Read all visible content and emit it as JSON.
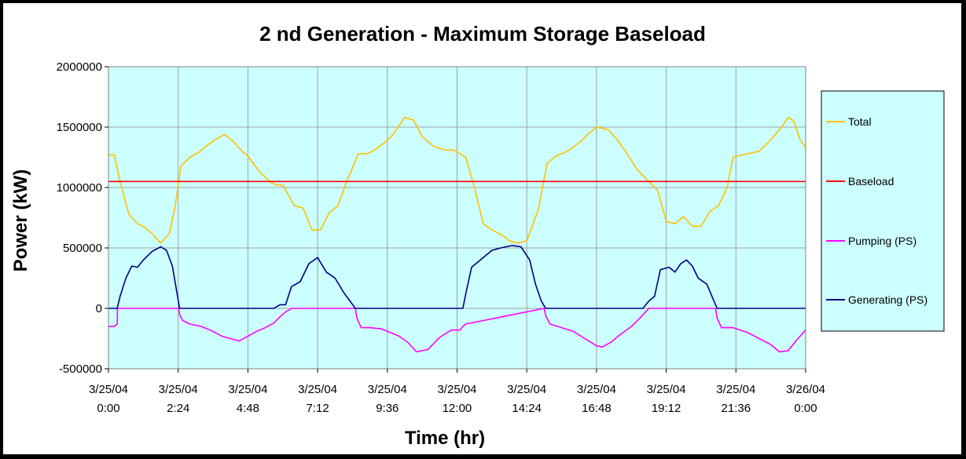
{
  "chart_data": {
    "type": "line",
    "title": "2 nd Generation - Maximum Storage Baseload",
    "xlabel": "Time (hr)",
    "ylabel": "Power (kW)",
    "ylim": [
      -500000,
      2000000
    ],
    "yticks": [
      -500000,
      0,
      500000,
      1000000,
      1500000,
      2000000
    ],
    "ytick_labels": [
      "-500000",
      "0",
      "500000",
      "1000000",
      "1500000",
      "2000000"
    ],
    "xlim_hours": [
      0,
      24
    ],
    "xtick_labels": [
      [
        "3/25/04",
        "0:00"
      ],
      [
        "3/25/04",
        "2:24"
      ],
      [
        "3/25/04",
        "4:48"
      ],
      [
        "3/25/04",
        "7:12"
      ],
      [
        "3/25/04",
        "9:36"
      ],
      [
        "3/25/04",
        "12:00"
      ],
      [
        "3/25/04",
        "14:24"
      ],
      [
        "3/25/04",
        "16:48"
      ],
      [
        "3/25/04",
        "19:12"
      ],
      [
        "3/25/04",
        "21:36"
      ],
      [
        "3/26/04",
        "0:00"
      ]
    ],
    "grid": true,
    "plot_background": "#ccffff",
    "legend_position": "right",
    "series": [
      {
        "name": "Total",
        "color": "#ffc000",
        "x": [
          0,
          0.2,
          0.4,
          0.7,
          1.0,
          1.2,
          1.5,
          1.8,
          2.1,
          2.3,
          2.5,
          2.8,
          3.1,
          3.4,
          3.7,
          4.0,
          4.3,
          4.6,
          4.8,
          5.2,
          5.6,
          5.8,
          6.0,
          6.4,
          6.7,
          7.0,
          7.3,
          7.6,
          7.9,
          8.2,
          8.6,
          8.9,
          9.1,
          9.5,
          9.8,
          10.2,
          10.5,
          10.8,
          11.2,
          11.6,
          11.9,
          12.1,
          12.3,
          12.6,
          12.9,
          13.2,
          13.6,
          13.8,
          14.1,
          14.4,
          14.8,
          15.1,
          15.4,
          15.8,
          16.2,
          16.5,
          16.8,
          17.2,
          17.5,
          17.8,
          18.2,
          18.6,
          18.9,
          19.2,
          19.5,
          19.8,
          20.1,
          20.4,
          20.7,
          21.0,
          21.3,
          21.5,
          22.0,
          22.4,
          22.7,
          23.0,
          23.2,
          23.4,
          23.6,
          23.8,
          24.0
        ],
        "y": [
          1270000,
          1270000,
          1050000,
          780000,
          700000,
          680000,
          620000,
          540000,
          620000,
          850000,
          1180000,
          1250000,
          1290000,
          1350000,
          1400000,
          1440000,
          1380000,
          1300000,
          1260000,
          1130000,
          1040000,
          1020000,
          1020000,
          850000,
          830000,
          650000,
          650000,
          790000,
          850000,
          1050000,
          1280000,
          1280000,
          1300000,
          1370000,
          1440000,
          1580000,
          1560000,
          1420000,
          1340000,
          1310000,
          1310000,
          1280000,
          1250000,
          1000000,
          700000,
          650000,
          600000,
          560000,
          540000,
          560000,
          820000,
          1200000,
          1260000,
          1300000,
          1370000,
          1440000,
          1500000,
          1480000,
          1400000,
          1300000,
          1150000,
          1050000,
          980000,
          720000,
          700000,
          760000,
          680000,
          680000,
          800000,
          850000,
          1000000,
          1250000,
          1280000,
          1300000,
          1370000,
          1450000,
          1510000,
          1580000,
          1550000,
          1400000,
          1330000
        ]
      },
      {
        "name": "Baseload",
        "color": "#ff0000",
        "x": [
          0,
          24
        ],
        "y": [
          1050000,
          1050000
        ]
      },
      {
        "name": "Pumping (PS)",
        "color": "#ff00ff",
        "x": [
          0,
          0.2,
          0.3,
          0.31,
          2.42,
          2.45,
          2.55,
          2.8,
          3.2,
          3.6,
          3.9,
          4.2,
          4.5,
          4.8,
          5.1,
          5.4,
          5.7,
          5.9,
          6.1,
          6.3,
          8.5,
          8.55,
          8.7,
          9.0,
          9.4,
          9.7,
          10.0,
          10.3,
          10.6,
          11.0,
          11.4,
          11.8,
          12.1,
          12.2,
          12.3,
          15.0,
          15.05,
          15.2,
          15.6,
          16.0,
          16.4,
          16.8,
          17.0,
          17.3,
          17.6,
          18.0,
          18.3,
          18.6,
          20.9,
          20.95,
          21.1,
          21.5,
          22.0,
          22.4,
          22.8,
          23.1,
          23.4,
          23.7,
          24.0
        ],
        "y": [
          -150000,
          -150000,
          -130000,
          0,
          0,
          -50000,
          -100000,
          -130000,
          -150000,
          -190000,
          -230000,
          -250000,
          -270000,
          -230000,
          -190000,
          -160000,
          -120000,
          -70000,
          -30000,
          0,
          0,
          -80000,
          -160000,
          -160000,
          -170000,
          -200000,
          -230000,
          -280000,
          -360000,
          -340000,
          -240000,
          -180000,
          -180000,
          -150000,
          -130000,
          0,
          -60000,
          -130000,
          -160000,
          -190000,
          -250000,
          -310000,
          -320000,
          -280000,
          -220000,
          -150000,
          -80000,
          0,
          0,
          -80000,
          -160000,
          -160000,
          -200000,
          -250000,
          -300000,
          -360000,
          -350000,
          -260000,
          -180000
        ]
      },
      {
        "name": "Generating (PS)",
        "color": "#000080",
        "x": [
          0,
          0.3,
          0.4,
          0.6,
          0.8,
          1.0,
          1.2,
          1.5,
          1.8,
          2.0,
          2.2,
          2.45,
          5.7,
          5.9,
          6.1,
          6.3,
          6.6,
          6.9,
          7.2,
          7.5,
          7.8,
          8.1,
          8.5,
          12.2,
          12.3,
          12.5,
          12.8,
          13.2,
          13.5,
          13.9,
          14.2,
          14.5,
          14.7,
          14.9,
          15.05,
          18.4,
          18.6,
          18.8,
          19.0,
          19.3,
          19.5,
          19.7,
          19.9,
          20.1,
          20.3,
          20.6,
          20.95,
          24.0
        ],
        "y": [
          0,
          0,
          100000,
          250000,
          350000,
          340000,
          400000,
          470000,
          510000,
          480000,
          350000,
          0,
          0,
          30000,
          30000,
          180000,
          220000,
          370000,
          420000,
          300000,
          250000,
          130000,
          0,
          0,
          120000,
          340000,
          400000,
          480000,
          500000,
          520000,
          510000,
          400000,
          200000,
          60000,
          0,
          0,
          60000,
          100000,
          320000,
          340000,
          300000,
          370000,
          400000,
          350000,
          250000,
          200000,
          0,
          0
        ]
      }
    ]
  }
}
